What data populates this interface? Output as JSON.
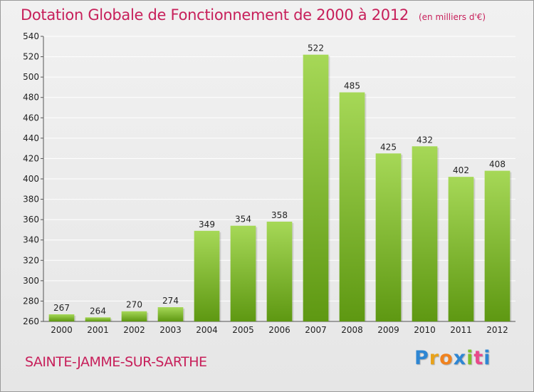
{
  "chart_title": "Dotation Globale de Fonctionnement de 2000 à 2012",
  "unit_label": "(en milliers d'€)",
  "commune": "SAINTE-JAMME-SUR-SARTHE",
  "brand": {
    "letters": [
      "P",
      "r",
      "o",
      "x",
      "i",
      "t",
      "i"
    ],
    "colors": [
      "#2e86d3",
      "#e8a21b",
      "#f0821e",
      "#2e86d3",
      "#7fbf2a",
      "#e84a8a",
      "#2e86d3"
    ]
  },
  "colors": {
    "accent": "#c71f5a",
    "bar_top": "#a6d857",
    "bar_bottom": "#5e9812",
    "grid": "#ffffff",
    "axis_text": "#222222"
  },
  "chart_data": {
    "type": "bar",
    "categories": [
      "2000",
      "2001",
      "2002",
      "2003",
      "2004",
      "2005",
      "2006",
      "2007",
      "2008",
      "2009",
      "2010",
      "2011",
      "2012"
    ],
    "values": [
      267,
      264,
      270,
      274,
      349,
      354,
      358,
      522,
      485,
      425,
      432,
      402,
      408
    ],
    "ylim": [
      260,
      540
    ],
    "yticks": [
      260,
      280,
      300,
      320,
      340,
      360,
      380,
      400,
      420,
      440,
      460,
      480,
      500,
      520,
      540
    ],
    "grid": true,
    "data_labels": true
  }
}
